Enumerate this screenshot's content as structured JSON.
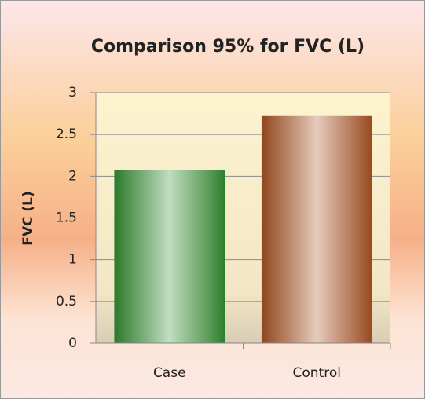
{
  "chart_data": {
    "type": "bar",
    "title": "Comparison 95% for FVC (L)",
    "y_label": "FVC (L)",
    "categories": [
      "Case",
      "Control"
    ],
    "values": [
      2.07,
      2.72
    ],
    "colors": [
      "#2f8f2f",
      "#a8521f"
    ],
    "ylim": [
      0,
      3
    ],
    "yticks": [
      0,
      0.5,
      1,
      1.5,
      2,
      2.5,
      3
    ],
    "grid": true
  }
}
